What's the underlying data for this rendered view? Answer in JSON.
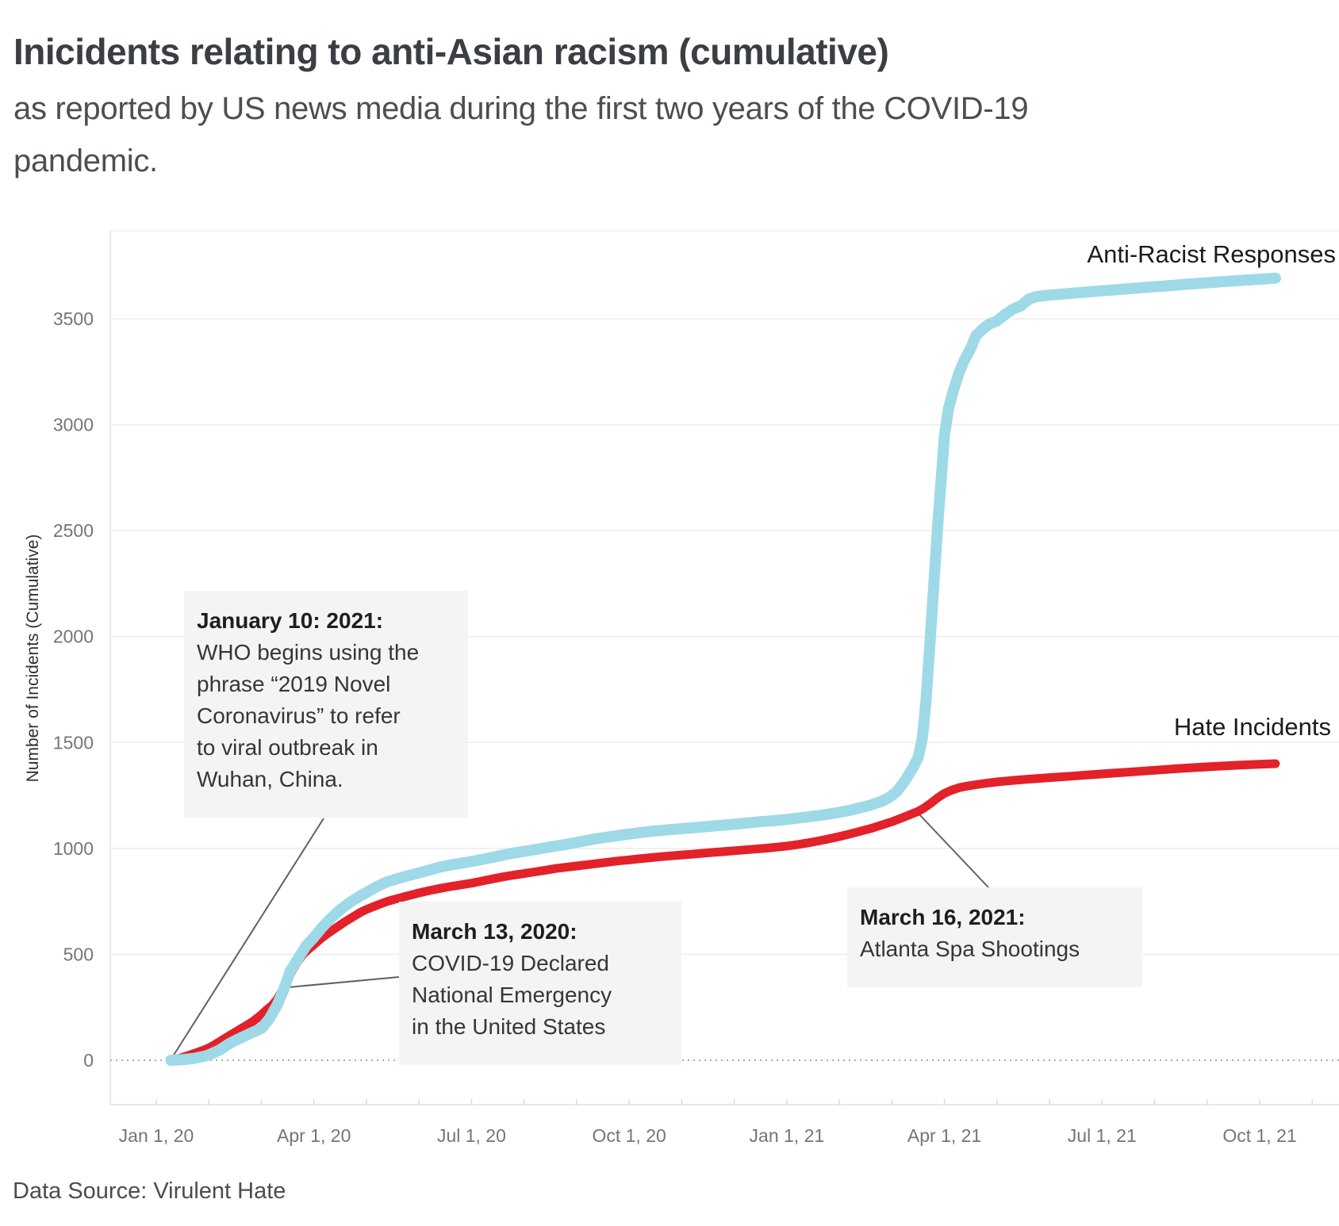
{
  "header": {
    "title": "Inicidents relating to anti-Asian racism (cumulative)",
    "subtitle_line1": "as reported by US news media during the first two years of the COVID-19",
    "subtitle_line2": "pandemic."
  },
  "footer": {
    "source": "Data Source: Virulent Hate"
  },
  "chart_data": {
    "type": "line",
    "title": "Inicidents relating to anti-Asian racism (cumulative)",
    "subtitle": "as reported by US news media during the first two years of the COVID-19 pandemic.",
    "ylabel": "Number of Incidents (Cumulative)",
    "xlabel": "",
    "x_unit": "months since Jan 1, 2020",
    "ylim": [
      -200,
      3930
    ],
    "xlim_months": [
      -0.9,
      22.5
    ],
    "grid": "horizontal",
    "zero_line_style": "dotted",
    "y_ticks": [
      0,
      500,
      1000,
      1500,
      2000,
      2500,
      3000,
      3500
    ],
    "x_ticks": [
      "Jan 1, 20",
      "Apr 1, 20",
      "Jul 1, 20",
      "Oct 1, 20",
      "Jan 1, 21",
      "Apr 1, 21",
      "Jul 1, 21",
      "Oct 1, 21"
    ],
    "x_tick_month_index": [
      0,
      3,
      6,
      9,
      12,
      15,
      18,
      21
    ],
    "series": [
      {
        "name": "Hate Incidents",
        "data_name": "hate-incidents-line",
        "color": "#e32129",
        "width": 11,
        "points": [
          [
            0.28,
            0
          ],
          [
            0.45,
            10
          ],
          [
            0.6,
            22
          ],
          [
            0.75,
            35
          ],
          [
            0.9,
            48
          ],
          [
            1.0,
            58
          ],
          [
            1.1,
            72
          ],
          [
            1.25,
            95
          ],
          [
            1.4,
            118
          ],
          [
            1.55,
            140
          ],
          [
            1.7,
            162
          ],
          [
            1.85,
            185
          ],
          [
            2.0,
            215
          ],
          [
            2.1,
            238
          ],
          [
            2.2,
            258
          ],
          [
            2.3,
            288
          ],
          [
            2.4,
            330
          ],
          [
            2.5,
            385
          ],
          [
            2.6,
            428
          ],
          [
            2.7,
            468
          ],
          [
            2.8,
            502
          ],
          [
            2.9,
            525
          ],
          [
            3.0,
            545
          ],
          [
            3.15,
            578
          ],
          [
            3.3,
            605
          ],
          [
            3.45,
            630
          ],
          [
            3.6,
            655
          ],
          [
            3.75,
            678
          ],
          [
            3.9,
            700
          ],
          [
            4.0,
            712
          ],
          [
            4.2,
            732
          ],
          [
            4.4,
            750
          ],
          [
            4.6,
            764
          ],
          [
            4.8,
            777
          ],
          [
            5.0,
            790
          ],
          [
            5.2,
            801
          ],
          [
            5.4,
            811
          ],
          [
            5.6,
            820
          ],
          [
            5.8,
            828
          ],
          [
            6.0,
            836
          ],
          [
            6.2,
            846
          ],
          [
            6.4,
            856
          ],
          [
            6.6,
            866
          ],
          [
            6.8,
            874
          ],
          [
            7.0,
            881
          ],
          [
            7.2,
            889
          ],
          [
            7.4,
            897
          ],
          [
            7.6,
            905
          ],
          [
            7.8,
            911
          ],
          [
            8.0,
            917
          ],
          [
            8.2,
            923
          ],
          [
            8.4,
            929
          ],
          [
            8.6,
            935
          ],
          [
            8.8,
            941
          ],
          [
            9.0,
            946
          ],
          [
            9.2,
            951
          ],
          [
            9.4,
            956
          ],
          [
            9.6,
            961
          ],
          [
            9.8,
            965
          ],
          [
            10.0,
            969
          ],
          [
            10.2,
            973
          ],
          [
            10.4,
            977
          ],
          [
            10.6,
            981
          ],
          [
            10.8,
            985
          ],
          [
            11.0,
            989
          ],
          [
            11.2,
            993
          ],
          [
            11.4,
            997
          ],
          [
            11.6,
            1001
          ],
          [
            11.8,
            1006
          ],
          [
            12.0,
            1011
          ],
          [
            12.2,
            1018
          ],
          [
            12.4,
            1026
          ],
          [
            12.6,
            1035
          ],
          [
            12.8,
            1045
          ],
          [
            13.0,
            1056
          ],
          [
            13.2,
            1068
          ],
          [
            13.4,
            1081
          ],
          [
            13.6,
            1094
          ],
          [
            13.8,
            1110
          ],
          [
            14.0,
            1126
          ],
          [
            14.2,
            1145
          ],
          [
            14.35,
            1160
          ],
          [
            14.5,
            1175
          ],
          [
            14.62,
            1192
          ],
          [
            14.75,
            1215
          ],
          [
            14.88,
            1240
          ],
          [
            15.0,
            1260
          ],
          [
            15.15,
            1276
          ],
          [
            15.3,
            1288
          ],
          [
            15.45,
            1295
          ],
          [
            15.6,
            1301
          ],
          [
            15.8,
            1308
          ],
          [
            16.0,
            1314
          ],
          [
            16.3,
            1321
          ],
          [
            16.6,
            1327
          ],
          [
            17.0,
            1334
          ],
          [
            17.4,
            1341
          ],
          [
            17.8,
            1348
          ],
          [
            18.2,
            1355
          ],
          [
            18.6,
            1362
          ],
          [
            19.0,
            1369
          ],
          [
            19.4,
            1376
          ],
          [
            19.8,
            1382
          ],
          [
            20.2,
            1388
          ],
          [
            20.6,
            1393
          ],
          [
            21.0,
            1397
          ],
          [
            21.3,
            1400
          ]
        ]
      },
      {
        "name": "Anti-Racist Responses",
        "data_name": "anti-racist-responses-line",
        "color": "#9ed9e8",
        "width": 14,
        "points": [
          [
            0.28,
            0
          ],
          [
            0.5,
            3
          ],
          [
            0.7,
            8
          ],
          [
            0.9,
            18
          ],
          [
            1.0,
            25
          ],
          [
            1.2,
            48
          ],
          [
            1.4,
            80
          ],
          [
            1.6,
            105
          ],
          [
            1.8,
            128
          ],
          [
            2.0,
            150
          ],
          [
            2.15,
            195
          ],
          [
            2.3,
            260
          ],
          [
            2.42,
            330
          ],
          [
            2.55,
            420
          ],
          [
            2.7,
            480
          ],
          [
            2.85,
            540
          ],
          [
            3.0,
            580
          ],
          [
            3.15,
            625
          ],
          [
            3.3,
            665
          ],
          [
            3.5,
            710
          ],
          [
            3.7,
            748
          ],
          [
            3.9,
            778
          ],
          [
            4.0,
            792
          ],
          [
            4.2,
            820
          ],
          [
            4.4,
            843
          ],
          [
            4.6,
            858
          ],
          [
            4.8,
            872
          ],
          [
            5.0,
            884
          ],
          [
            5.2,
            898
          ],
          [
            5.4,
            912
          ],
          [
            5.6,
            922
          ],
          [
            5.8,
            930
          ],
          [
            6.0,
            938
          ],
          [
            6.2,
            948
          ],
          [
            6.4,
            958
          ],
          [
            6.6,
            968
          ],
          [
            6.8,
            978
          ],
          [
            7.0,
            986
          ],
          [
            7.2,
            994
          ],
          [
            7.4,
            1003
          ],
          [
            7.6,
            1011
          ],
          [
            7.8,
            1019
          ],
          [
            8.0,
            1028
          ],
          [
            8.2,
            1038
          ],
          [
            8.4,
            1047
          ],
          [
            8.6,
            1054
          ],
          [
            8.8,
            1061
          ],
          [
            9.0,
            1068
          ],
          [
            9.2,
            1074
          ],
          [
            9.4,
            1080
          ],
          [
            9.6,
            1085
          ],
          [
            9.8,
            1089
          ],
          [
            10.0,
            1093
          ],
          [
            10.2,
            1097
          ],
          [
            10.4,
            1101
          ],
          [
            10.6,
            1106
          ],
          [
            10.8,
            1110
          ],
          [
            11.0,
            1114
          ],
          [
            11.2,
            1119
          ],
          [
            11.4,
            1124
          ],
          [
            11.6,
            1128
          ],
          [
            11.8,
            1132
          ],
          [
            12.0,
            1137
          ],
          [
            12.2,
            1143
          ],
          [
            12.4,
            1149
          ],
          [
            12.6,
            1155
          ],
          [
            12.8,
            1162
          ],
          [
            13.0,
            1170
          ],
          [
            13.2,
            1180
          ],
          [
            13.4,
            1192
          ],
          [
            13.6,
            1205
          ],
          [
            13.8,
            1222
          ],
          [
            13.95,
            1240
          ],
          [
            14.1,
            1270
          ],
          [
            14.25,
            1320
          ],
          [
            14.4,
            1380
          ],
          [
            14.5,
            1430
          ],
          [
            14.58,
            1520
          ],
          [
            14.65,
            1700
          ],
          [
            14.72,
            1950
          ],
          [
            14.8,
            2250
          ],
          [
            14.87,
            2520
          ],
          [
            14.95,
            2780
          ],
          [
            15.0,
            2950
          ],
          [
            15.08,
            3080
          ],
          [
            15.17,
            3160
          ],
          [
            15.27,
            3240
          ],
          [
            15.37,
            3300
          ],
          [
            15.5,
            3360
          ],
          [
            15.6,
            3420
          ],
          [
            15.72,
            3450
          ],
          [
            15.85,
            3475
          ],
          [
            16.0,
            3490
          ],
          [
            16.15,
            3520
          ],
          [
            16.3,
            3545
          ],
          [
            16.45,
            3560
          ],
          [
            16.6,
            3592
          ],
          [
            16.75,
            3605
          ],
          [
            17.0,
            3612
          ],
          [
            17.3,
            3618
          ],
          [
            17.6,
            3624
          ],
          [
            18.0,
            3632
          ],
          [
            18.4,
            3640
          ],
          [
            18.8,
            3648
          ],
          [
            19.2,
            3655
          ],
          [
            19.6,
            3663
          ],
          [
            20.0,
            3670
          ],
          [
            20.4,
            3677
          ],
          [
            20.8,
            3684
          ],
          [
            21.1,
            3688
          ],
          [
            21.3,
            3692
          ]
        ]
      }
    ],
    "annotations": [
      {
        "title": "January 10: 2021:",
        "body": "WHO begins using the\nphrase “2019 Novel\nCoronavirus” to refer\nto viral outbreak in\nWuhan, China.",
        "line": [
          408,
          1032,
          218,
          1332
        ]
      },
      {
        "title": "March 13, 2020:",
        "body": "COVID-19 Declared\nNational Emergency\nin the United States",
        "line": [
          503,
          1232,
          352,
          1246
        ]
      },
      {
        "title": "March 16, 2021:",
        "body": "Atlanta Spa Shootings",
        "line": [
          1158,
          1026,
          1246,
          1119
        ]
      }
    ],
    "colors": {
      "hate_incidents": "#e32129",
      "anti_racist_responses": "#9ed9e8",
      "annotation_background": "#f4f4f4",
      "connector_line": "#606060",
      "gridline": "#ececec",
      "tick_label": "#757575"
    },
    "legend_position": "inline-end-of-line-labels"
  }
}
